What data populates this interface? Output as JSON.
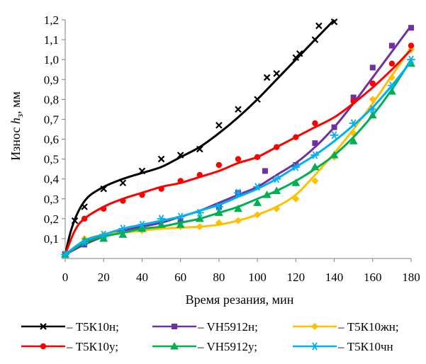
{
  "chart_data": {
    "type": "line",
    "xlabel": "Время резания, мин",
    "ylabel_prefix": "Износ ",
    "ylabel_italic": "h",
    "ylabel_sub": "з",
    "ylabel_suffix": ", мм",
    "xlim": [
      0,
      180
    ],
    "ylim": [
      0,
      1.2
    ],
    "x_ticks": [
      0,
      20,
      40,
      60,
      80,
      100,
      120,
      140,
      160,
      180
    ],
    "x_tick_labels": [
      "0",
      "20",
      "40",
      "60",
      "80",
      "100",
      "120",
      "140",
      "160",
      "180"
    ],
    "y_ticks": [
      0.1,
      0.2,
      0.3,
      0.4,
      0.5,
      0.6,
      0.7,
      0.8,
      0.9,
      1.0,
      1.1,
      1.2
    ],
    "y_tick_labels": [
      "0,1",
      "0,2",
      "0,3",
      "0,4",
      "0,5",
      "0,6",
      "0,7",
      "0,8",
      "0,9",
      "1,0",
      "1,1",
      "1,2"
    ],
    "grid": false,
    "legend_position": "bottom",
    "series": [
      {
        "name": "– Т5К10н;",
        "color": "#000000",
        "marker": "x",
        "points": [
          [
            0,
            0.02
          ],
          [
            5,
            0.19
          ],
          [
            10,
            0.26
          ],
          [
            20,
            0.35
          ],
          [
            30,
            0.38
          ],
          [
            40,
            0.44
          ],
          [
            50,
            0.5
          ],
          [
            60,
            0.52
          ],
          [
            70,
            0.55
          ],
          [
            80,
            0.67
          ],
          [
            90,
            0.75
          ],
          [
            100,
            0.8
          ],
          [
            105,
            0.91
          ],
          [
            110,
            0.93
          ],
          [
            120,
            1.01
          ],
          [
            122,
            1.03
          ],
          [
            130,
            1.1
          ],
          [
            132,
            1.17
          ],
          [
            140,
            1.19
          ]
        ],
        "curve": [
          [
            0,
            0.02
          ],
          [
            3,
            0.14
          ],
          [
            7,
            0.24
          ],
          [
            12,
            0.31
          ],
          [
            20,
            0.36
          ],
          [
            30,
            0.4
          ],
          [
            40,
            0.43
          ],
          [
            50,
            0.46
          ],
          [
            60,
            0.51
          ],
          [
            70,
            0.56
          ],
          [
            80,
            0.63
          ],
          [
            90,
            0.71
          ],
          [
            100,
            0.8
          ],
          [
            110,
            0.9
          ],
          [
            120,
            1.0
          ],
          [
            130,
            1.1
          ],
          [
            140,
            1.2
          ]
        ]
      },
      {
        "name": "– VH5912н;",
        "color": "#7030a0",
        "marker": "square",
        "points": [
          [
            0,
            0.02
          ],
          [
            10,
            0.07
          ],
          [
            20,
            0.11
          ],
          [
            40,
            0.16
          ],
          [
            60,
            0.19
          ],
          [
            80,
            0.26
          ],
          [
            90,
            0.33
          ],
          [
            104,
            0.44
          ],
          [
            120,
            0.47
          ],
          [
            130,
            0.58
          ],
          [
            140,
            0.66
          ],
          [
            150,
            0.81
          ],
          [
            160,
            0.96
          ],
          [
            170,
            1.07
          ],
          [
            180,
            1.16
          ]
        ],
        "curve": [
          [
            0,
            0.02
          ],
          [
            10,
            0.07
          ],
          [
            20,
            0.11
          ],
          [
            30,
            0.14
          ],
          [
            40,
            0.16
          ],
          [
            50,
            0.18
          ],
          [
            60,
            0.21
          ],
          [
            70,
            0.24
          ],
          [
            80,
            0.28
          ],
          [
            90,
            0.32
          ],
          [
            100,
            0.36
          ],
          [
            110,
            0.42
          ],
          [
            120,
            0.48
          ],
          [
            130,
            0.56
          ],
          [
            140,
            0.66
          ],
          [
            150,
            0.78
          ],
          [
            160,
            0.91
          ],
          [
            170,
            1.04
          ],
          [
            180,
            1.17
          ]
        ]
      },
      {
        "name": "– Т5К10жн;",
        "color": "#ffc000",
        "marker": "diamond",
        "points": [
          [
            0,
            0.02
          ],
          [
            10,
            0.1
          ],
          [
            20,
            0.12
          ],
          [
            40,
            0.14
          ],
          [
            50,
            0.16
          ],
          [
            60,
            0.16
          ],
          [
            70,
            0.16
          ],
          [
            80,
            0.18
          ],
          [
            90,
            0.19
          ],
          [
            100,
            0.22
          ],
          [
            110,
            0.25
          ],
          [
            120,
            0.3
          ],
          [
            130,
            0.39
          ],
          [
            140,
            0.51
          ],
          [
            150,
            0.63
          ],
          [
            160,
            0.8
          ],
          [
            170,
            0.91
          ],
          [
            180,
            1.05
          ]
        ],
        "curve": [
          [
            0,
            0.02
          ],
          [
            10,
            0.09
          ],
          [
            20,
            0.12
          ],
          [
            30,
            0.13
          ],
          [
            40,
            0.14
          ],
          [
            50,
            0.15
          ],
          [
            60,
            0.155
          ],
          [
            70,
            0.16
          ],
          [
            80,
            0.17
          ],
          [
            90,
            0.19
          ],
          [
            100,
            0.22
          ],
          [
            110,
            0.26
          ],
          [
            120,
            0.32
          ],
          [
            130,
            0.42
          ],
          [
            140,
            0.53
          ],
          [
            150,
            0.65
          ],
          [
            160,
            0.78
          ],
          [
            170,
            0.92
          ],
          [
            180,
            1.06
          ]
        ]
      },
      {
        "name": "– Т5К10у;",
        "color": "#ff0000",
        "marker": "circle",
        "points": [
          [
            0,
            0.02
          ],
          [
            10,
            0.2
          ],
          [
            20,
            0.25
          ],
          [
            30,
            0.29
          ],
          [
            40,
            0.32
          ],
          [
            50,
            0.35
          ],
          [
            60,
            0.39
          ],
          [
            70,
            0.42
          ],
          [
            80,
            0.47
          ],
          [
            90,
            0.5
          ],
          [
            100,
            0.51
          ],
          [
            110,
            0.56
          ],
          [
            120,
            0.61
          ],
          [
            130,
            0.68
          ],
          [
            150,
            0.79
          ],
          [
            160,
            0.88
          ],
          [
            170,
            0.98
          ],
          [
            180,
            1.07
          ]
        ],
        "curve": [
          [
            0,
            0.02
          ],
          [
            5,
            0.14
          ],
          [
            10,
            0.2
          ],
          [
            20,
            0.26
          ],
          [
            30,
            0.3
          ],
          [
            40,
            0.33
          ],
          [
            50,
            0.36
          ],
          [
            60,
            0.38
          ],
          [
            70,
            0.41
          ],
          [
            80,
            0.44
          ],
          [
            90,
            0.48
          ],
          [
            100,
            0.51
          ],
          [
            110,
            0.56
          ],
          [
            120,
            0.61
          ],
          [
            130,
            0.66
          ],
          [
            140,
            0.71
          ],
          [
            150,
            0.78
          ],
          [
            160,
            0.86
          ],
          [
            170,
            0.95
          ],
          [
            180,
            1.05
          ]
        ]
      },
      {
        "name": "– VH5912у;",
        "color": "#00b050",
        "marker": "triangle",
        "points": [
          [
            0,
            0.02
          ],
          [
            10,
            0.09
          ],
          [
            20,
            0.1
          ],
          [
            30,
            0.12
          ],
          [
            40,
            0.15
          ],
          [
            50,
            0.17
          ],
          [
            60,
            0.17
          ],
          [
            70,
            0.2
          ],
          [
            80,
            0.23
          ],
          [
            90,
            0.25
          ],
          [
            100,
            0.28
          ],
          [
            105,
            0.32
          ],
          [
            110,
            0.34
          ],
          [
            120,
            0.38
          ],
          [
            130,
            0.46
          ],
          [
            140,
            0.52
          ],
          [
            150,
            0.59
          ],
          [
            160,
            0.72
          ],
          [
            170,
            0.84
          ],
          [
            180,
            0.98
          ]
        ],
        "curve": [
          [
            0,
            0.02
          ],
          [
            10,
            0.08
          ],
          [
            20,
            0.11
          ],
          [
            30,
            0.13
          ],
          [
            40,
            0.15
          ],
          [
            50,
            0.16
          ],
          [
            60,
            0.18
          ],
          [
            70,
            0.2
          ],
          [
            80,
            0.23
          ],
          [
            90,
            0.26
          ],
          [
            100,
            0.3
          ],
          [
            110,
            0.34
          ],
          [
            120,
            0.39
          ],
          [
            130,
            0.45
          ],
          [
            140,
            0.52
          ],
          [
            150,
            0.61
          ],
          [
            160,
            0.72
          ],
          [
            170,
            0.85
          ],
          [
            180,
            1.0
          ]
        ]
      },
      {
        "name": "– Т5К10чн",
        "color": "#00b0f0",
        "marker": "asterisk",
        "points": [
          [
            0,
            0.02
          ],
          [
            10,
            0.08
          ],
          [
            20,
            0.12
          ],
          [
            30,
            0.15
          ],
          [
            40,
            0.17
          ],
          [
            50,
            0.2
          ],
          [
            60,
            0.21
          ],
          [
            70,
            0.23
          ],
          [
            80,
            0.26
          ],
          [
            90,
            0.33
          ],
          [
            100,
            0.36
          ],
          [
            110,
            0.4
          ],
          [
            120,
            0.46
          ],
          [
            130,
            0.52
          ],
          [
            140,
            0.62
          ],
          [
            150,
            0.68
          ],
          [
            160,
            0.75
          ],
          [
            170,
            0.87
          ],
          [
            180,
            1.0
          ]
        ],
        "curve": [
          [
            0,
            0.02
          ],
          [
            10,
            0.09
          ],
          [
            20,
            0.12
          ],
          [
            30,
            0.15
          ],
          [
            40,
            0.17
          ],
          [
            50,
            0.19
          ],
          [
            60,
            0.21
          ],
          [
            70,
            0.24
          ],
          [
            80,
            0.27
          ],
          [
            90,
            0.31
          ],
          [
            100,
            0.35
          ],
          [
            110,
            0.4
          ],
          [
            120,
            0.46
          ],
          [
            130,
            0.52
          ],
          [
            140,
            0.59
          ],
          [
            150,
            0.67
          ],
          [
            160,
            0.76
          ],
          [
            170,
            0.87
          ],
          [
            180,
            0.99
          ]
        ]
      }
    ]
  }
}
